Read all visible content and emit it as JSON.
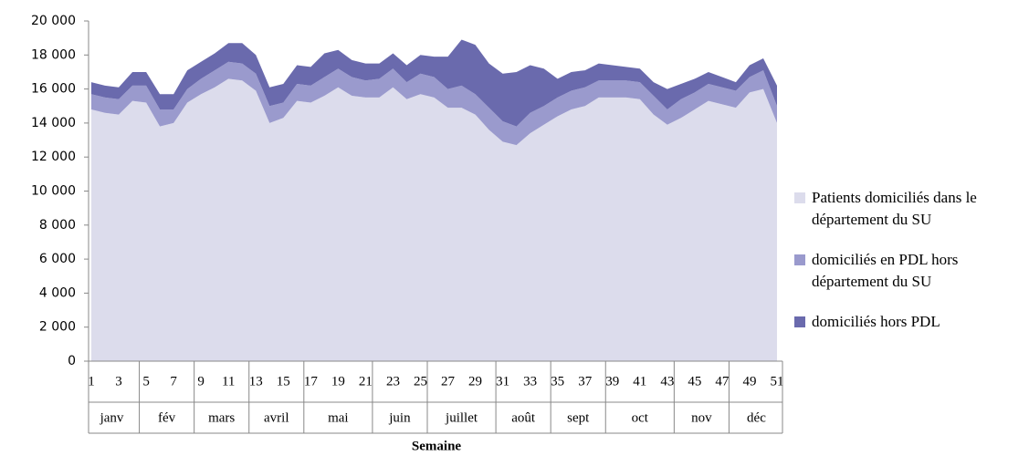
{
  "chart_data": {
    "type": "stacked-area",
    "x_axis_title": "Semaine",
    "x": [
      1,
      2,
      3,
      4,
      5,
      6,
      7,
      8,
      9,
      10,
      11,
      12,
      13,
      14,
      15,
      16,
      17,
      18,
      19,
      20,
      21,
      22,
      23,
      24,
      25,
      26,
      27,
      28,
      29,
      30,
      31,
      32,
      33,
      34,
      35,
      36,
      37,
      38,
      39,
      40,
      41,
      42,
      43,
      44,
      45,
      46,
      47,
      48,
      49,
      50,
      51
    ],
    "xlim": [
      1,
      51
    ],
    "xticks": [
      1,
      3,
      5,
      7,
      9,
      11,
      13,
      15,
      17,
      19,
      21,
      23,
      25,
      27,
      29,
      31,
      33,
      35,
      37,
      39,
      41,
      43,
      45,
      47,
      49,
      51
    ],
    "month_groups": [
      {
        "label": "janv",
        "from": 1,
        "to": 4
      },
      {
        "label": "fév",
        "from": 5,
        "to": 8
      },
      {
        "label": "mars",
        "from": 9,
        "to": 12
      },
      {
        "label": "avril",
        "from": 13,
        "to": 16
      },
      {
        "label": "mai",
        "from": 17,
        "to": 21
      },
      {
        "label": "juin",
        "from": 22,
        "to": 25
      },
      {
        "label": "juillet",
        "from": 26,
        "to": 30
      },
      {
        "label": "août",
        "from": 31,
        "to": 34
      },
      {
        "label": "sept",
        "from": 35,
        "to": 38
      },
      {
        "label": "oct",
        "from": 39,
        "to": 43
      },
      {
        "label": "nov",
        "from": 44,
        "to": 47
      },
      {
        "label": "déc",
        "from": 48,
        "to": 51
      }
    ],
    "ylim": [
      0,
      20000
    ],
    "yticks": [
      0,
      {
        "value": 2000,
        "label": "2 000"
      },
      {
        "value": 4000,
        "label": "4 000"
      },
      {
        "value": 6000,
        "label": "6 000"
      },
      {
        "value": 8000,
        "label": "8 000"
      },
      {
        "value": 10000,
        "label": "10 000"
      },
      {
        "value": 12000,
        "label": "12 000"
      },
      {
        "value": 14000,
        "label": "14 000"
      },
      {
        "value": 16000,
        "label": "16 000"
      },
      {
        "value": 18000,
        "label": "18 000"
      },
      {
        "value": 20000,
        "label": "20 000"
      }
    ],
    "grid": false,
    "legend": "right",
    "series": [
      {
        "name": "Patients domiciliés dans le département du SU",
        "color": "#dcdcec",
        "values": [
          14800,
          14600,
          14500,
          15300,
          15200,
          13800,
          14000,
          15200,
          15700,
          16100,
          16600,
          16500,
          15900,
          14000,
          14300,
          15300,
          15200,
          15600,
          16100,
          15600,
          15500,
          15500,
          16100,
          15400,
          15700,
          15500,
          14900,
          14900,
          14500,
          13600,
          12900,
          12700,
          13400,
          13900,
          14400,
          14800,
          15000,
          15500,
          15500,
          15500,
          15400,
          14500,
          13900,
          14300,
          14800,
          15300,
          15100,
          14900,
          15800,
          16000,
          14000
        ]
      },
      {
        "name": "domiciliés en PDL hors département du SU",
        "color": "#9a9acd",
        "values": [
          900,
          900,
          900,
          900,
          1000,
          1000,
          800,
          800,
          900,
          1000,
          1000,
          1000,
          1000,
          1000,
          900,
          1000,
          1000,
          1100,
          1100,
          1100,
          1000,
          1100,
          1100,
          1000,
          1200,
          1200,
          1100,
          1300,
          1200,
          1300,
          1200,
          1100,
          1200,
          1100,
          1100,
          1100,
          1100,
          1000,
          1000,
          1000,
          1000,
          1100,
          900,
          1100,
          1000,
          1000,
          1000,
          1000,
          900,
          1100,
          1000
        ]
      },
      {
        "name": "domiciliés hors PDL",
        "color": "#6a6aad",
        "values": [
          700,
          700,
          700,
          800,
          800,
          900,
          900,
          1100,
          1000,
          1000,
          1100,
          1200,
          1100,
          1100,
          1100,
          1100,
          1100,
          1400,
          1100,
          1000,
          1000,
          900,
          900,
          1000,
          1100,
          1200,
          1900,
          2700,
          2900,
          2600,
          2800,
          3200,
          2800,
          2200,
          1100,
          1100,
          1000,
          1000,
          900,
          800,
          800,
          800,
          1200,
          900,
          800,
          700,
          600,
          500,
          700,
          700,
          1200
        ]
      }
    ]
  }
}
